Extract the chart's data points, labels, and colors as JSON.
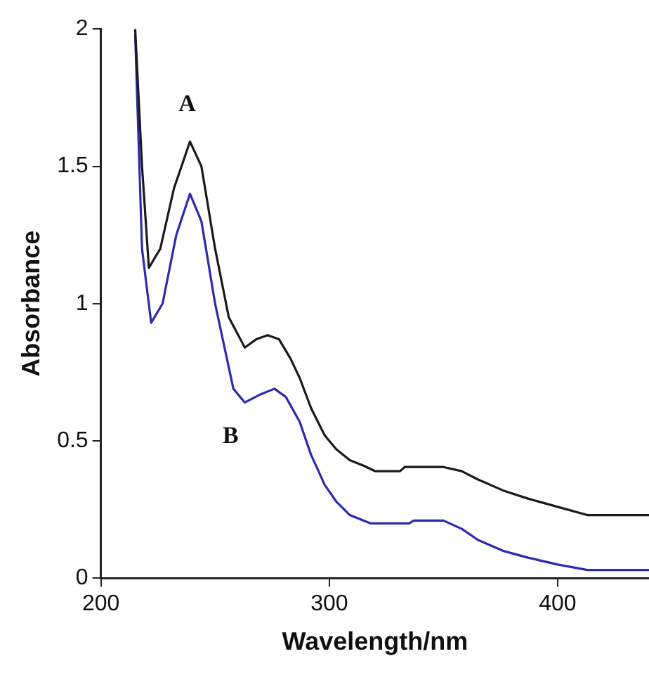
{
  "chart_data": {
    "type": "line",
    "xlabel": "Wavelength/nm",
    "ylabel": "Absorbance",
    "xlim": [
      200,
      440
    ],
    "xticks": [
      200,
      300,
      400
    ],
    "ylim": [
      0,
      2
    ],
    "yticks": [
      0,
      0.5,
      1,
      1.5,
      2
    ],
    "grid": false,
    "legend": false,
    "marker": "none",
    "line_style": "solid",
    "series": [
      {
        "name": "A",
        "color": "#1a1a1a",
        "x": [
          215,
          218,
          221,
          226,
          232,
          239,
          244,
          250,
          256,
          263,
          268,
          273,
          278,
          283,
          287,
          292,
          298,
          303,
          309,
          315,
          320,
          331,
          333,
          350,
          358,
          365,
          376,
          387,
          400,
          413,
          425,
          440
        ],
        "values": [
          2.0,
          1.5,
          1.13,
          1.2,
          1.42,
          1.59,
          1.5,
          1.2,
          0.95,
          0.84,
          0.87,
          0.885,
          0.87,
          0.8,
          0.73,
          0.62,
          0.52,
          0.47,
          0.43,
          0.41,
          0.39,
          0.39,
          0.405,
          0.405,
          0.39,
          0.36,
          0.32,
          0.29,
          0.26,
          0.23,
          0.23,
          0.23
        ]
      },
      {
        "name": "B",
        "color": "#2b2bb0",
        "x": [
          215,
          218,
          222,
          227,
          233,
          239,
          244,
          250,
          258,
          263,
          270,
          276,
          281,
          287,
          292,
          298,
          303,
          309,
          318,
          320,
          335,
          337,
          350,
          358,
          365,
          376,
          387,
          400,
          413,
          425,
          440
        ],
        "values": [
          1.98,
          1.2,
          0.93,
          1.0,
          1.25,
          1.4,
          1.3,
          1.0,
          0.69,
          0.64,
          0.67,
          0.69,
          0.66,
          0.57,
          0.45,
          0.34,
          0.28,
          0.23,
          0.2,
          0.2,
          0.2,
          0.21,
          0.21,
          0.18,
          0.14,
          0.1,
          0.075,
          0.05,
          0.03,
          0.03,
          0.03
        ]
      }
    ]
  }
}
